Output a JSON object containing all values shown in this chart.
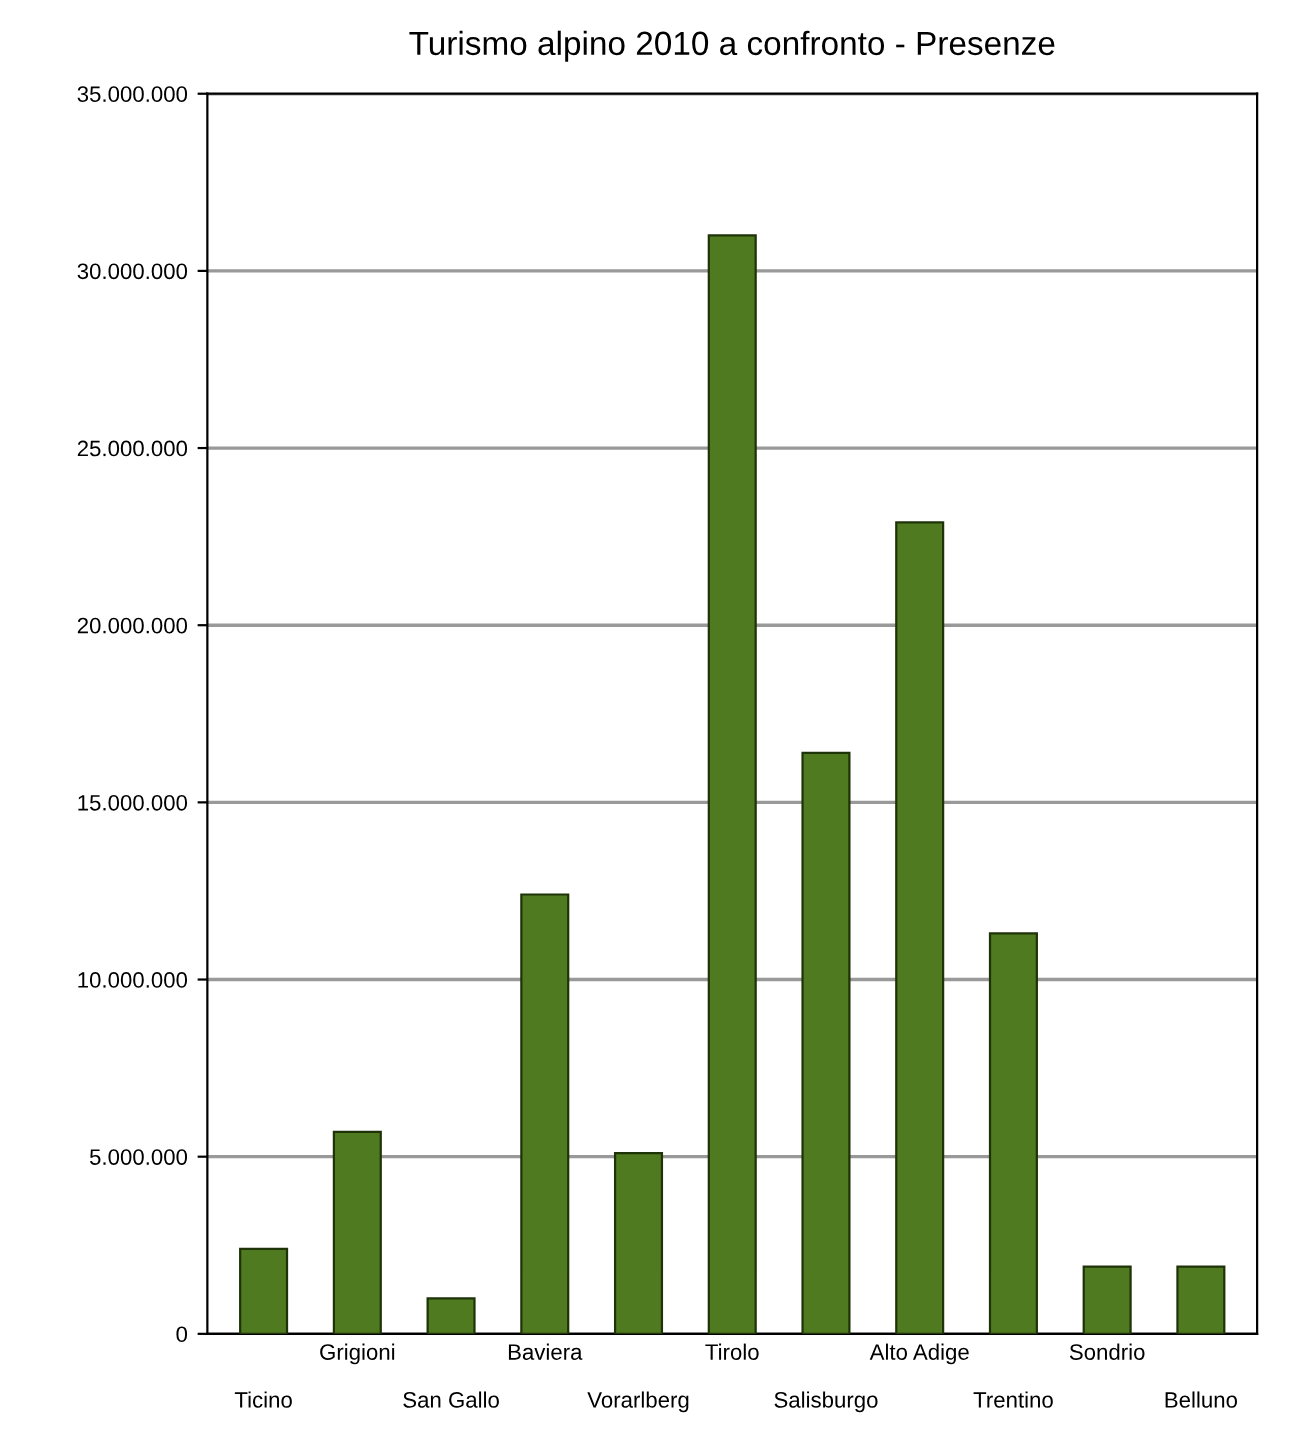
{
  "chart_data": {
    "type": "bar",
    "title": "Turismo alpino 2010 a confronto - Presenze",
    "categories": [
      "Ticino",
      "Grigioni",
      "San Gallo",
      "Baviera",
      "Vorarlberg",
      "Tirolo",
      "Salisburgo",
      "Alto Adige",
      "Trentino",
      "Sondrio",
      "Belluno"
    ],
    "values": [
      2400000,
      5700000,
      1000000,
      12400000,
      5100000,
      31000000,
      16400000,
      22900000,
      11300000,
      1900000,
      1900000
    ],
    "color": "#4f7a1f",
    "ylim": [
      0,
      35000000
    ],
    "yticks": [
      {
        "value": 0,
        "label": "0"
      },
      {
        "value": 5000000,
        "label": "5.000.000"
      },
      {
        "value": 10000000,
        "label": "10.000.000"
      },
      {
        "value": 15000000,
        "label": "15.000.000"
      },
      {
        "value": 20000000,
        "label": "20.000.000"
      },
      {
        "value": 25000000,
        "label": "25.000.000"
      },
      {
        "value": 30000000,
        "label": "30.000.000"
      },
      {
        "value": 35000000,
        "label": "35.000.000"
      }
    ],
    "grid": "y"
  }
}
